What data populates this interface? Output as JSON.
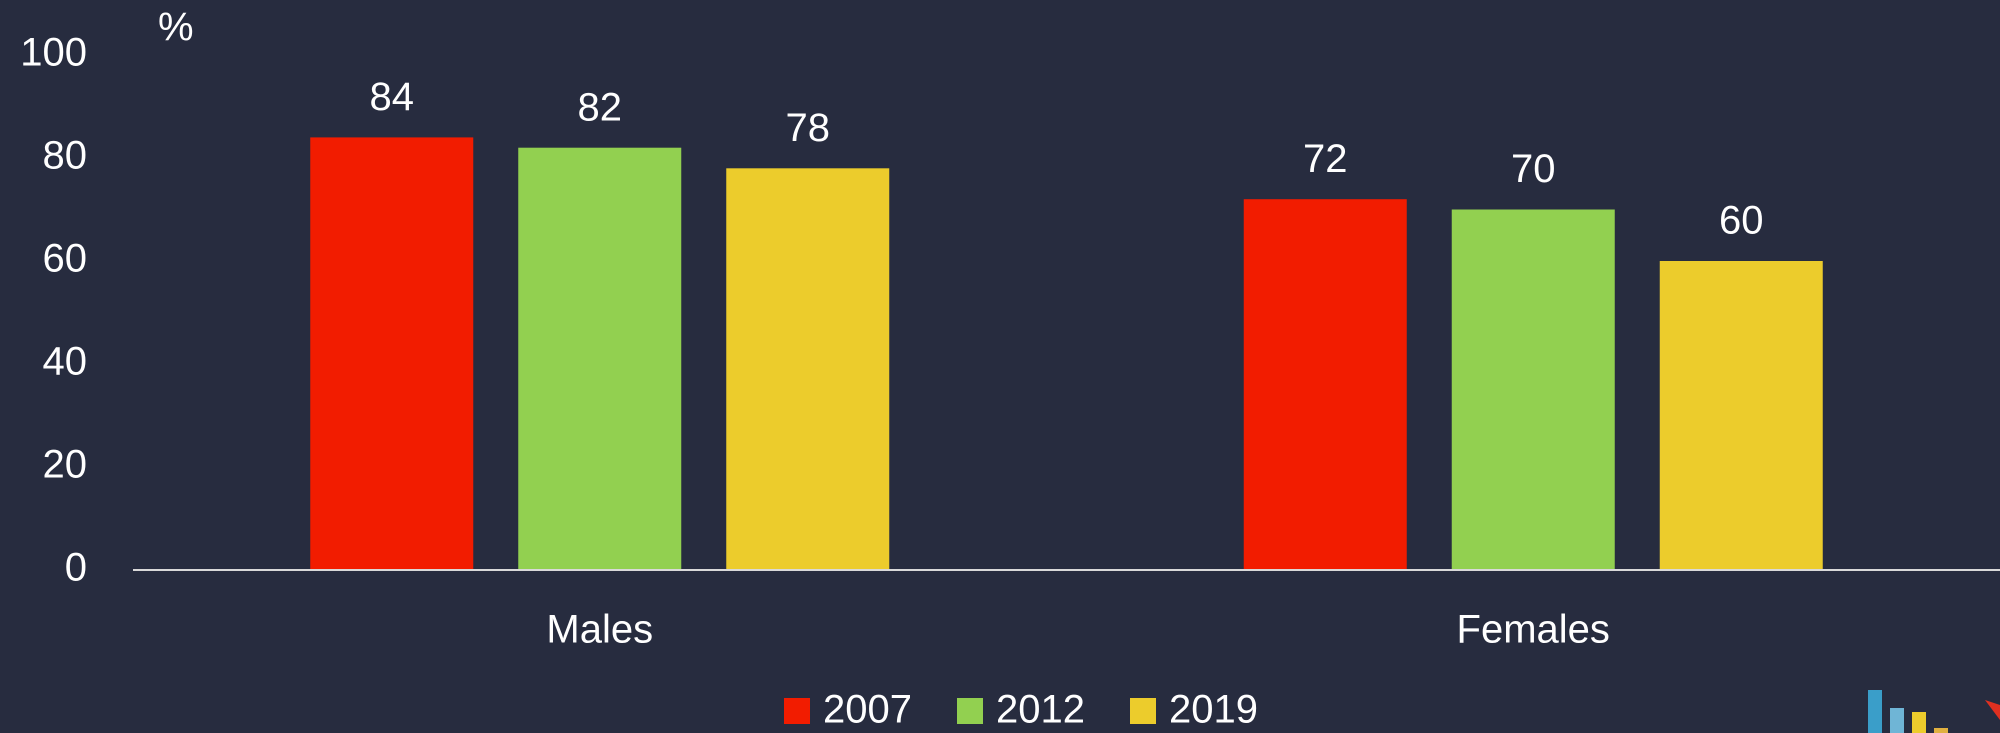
{
  "chart_data": {
    "type": "bar",
    "y_label": "%",
    "categories": [
      "Males",
      "Females"
    ],
    "series": [
      {
        "name": "2007",
        "color": "#f21c00",
        "values": [
          84,
          72
        ]
      },
      {
        "name": "2012",
        "color": "#92d050",
        "values": [
          82,
          70
        ]
      },
      {
        "name": "2019",
        "color": "#eccc2c",
        "values": [
          78,
          60
        ]
      }
    ],
    "ylim": [
      0,
      100
    ],
    "yticks": [
      0,
      20,
      40,
      60,
      80,
      100
    ],
    "grid": false,
    "legend": "bottom"
  }
}
